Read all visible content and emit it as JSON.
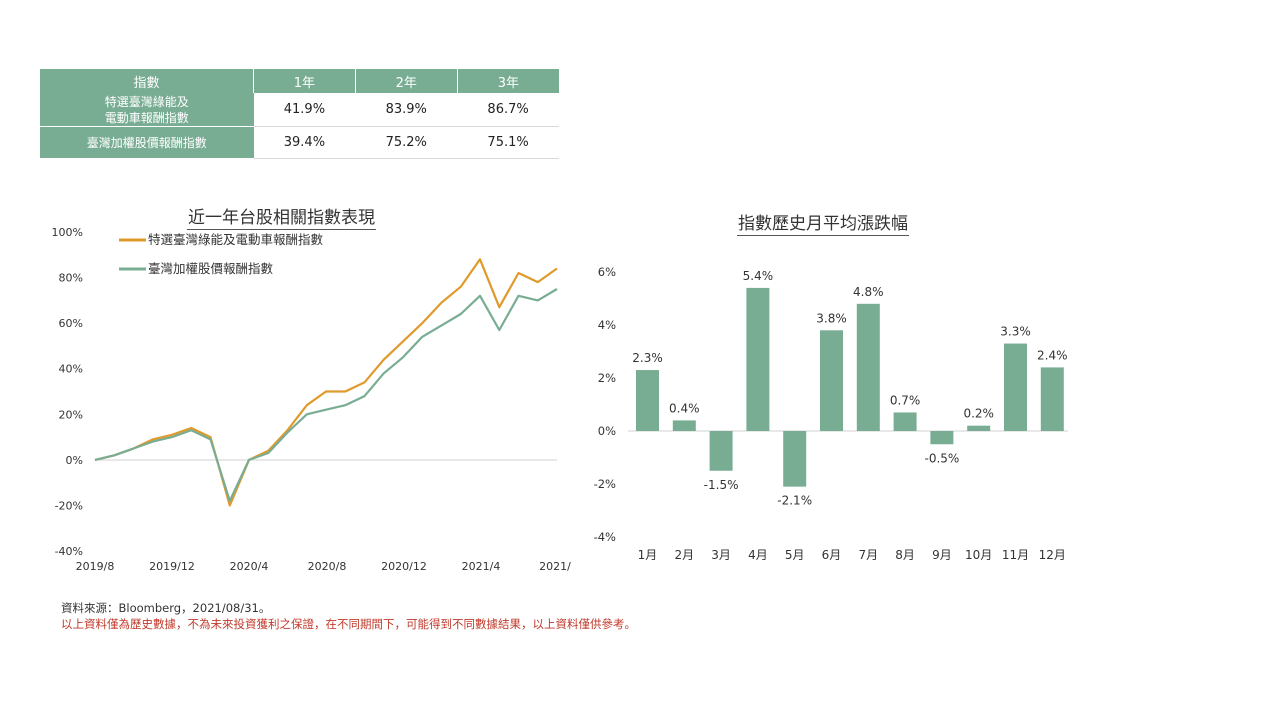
{
  "table": {
    "headers": [
      "指數",
      "1年",
      "2年",
      "3年"
    ],
    "rows": [
      {
        "name_line1": "特選臺灣綠能及",
        "name_line2": "電動車報酬指數",
        "values": [
          "41.9%",
          "83.9%",
          "86.7%"
        ]
      },
      {
        "name_line1": "臺灣加權股價報酬指數",
        "name_line2": "",
        "values": [
          "39.4%",
          "75.2%",
          "75.1%"
        ]
      }
    ]
  },
  "line_title": "近一年台股相關指數表現",
  "bar_title": "指數歷史月平均漲跌幅",
  "colors": {
    "series1": "#e09a2b",
    "series2": "#79ad93",
    "bar": "#79ad93",
    "header": "#79ad93",
    "disclaimer": "#c0392b"
  },
  "chart_data": [
    {
      "type": "line",
      "title": "近一年台股相關指數表現",
      "x_tick_labels": [
        "2019/8",
        "2019/12",
        "2020/4",
        "2020/8",
        "2020/12",
        "2021/4",
        "2021/"
      ],
      "y_tick_labels": [
        "100%",
        "80%",
        "60%",
        "40%",
        "20%",
        "0%",
        "-20%",
        "-40%"
      ],
      "ylim": [
        -40,
        100
      ],
      "x": [
        "2019-08",
        "2019-09",
        "2019-10",
        "2019-11",
        "2019-12",
        "2020-01",
        "2020-02",
        "2020-03",
        "2020-04",
        "2020-05",
        "2020-06",
        "2020-07",
        "2020-08",
        "2020-09",
        "2020-10",
        "2020-11",
        "2020-12",
        "2021-01",
        "2021-02",
        "2021-03",
        "2021-04",
        "2021-05",
        "2021-06",
        "2021-07",
        "2021-08"
      ],
      "series": [
        {
          "name": "特選臺灣綠能及電動車報酬指數",
          "values": [
            0,
            2,
            5,
            9,
            11,
            14,
            10,
            -20,
            0,
            4,
            13,
            24,
            30,
            30,
            34,
            44,
            52,
            60,
            69,
            76,
            88,
            67,
            82,
            78,
            84
          ]
        },
        {
          "name": "臺灣加權股價報酬指數",
          "values": [
            0,
            2,
            5,
            8,
            10,
            13,
            9,
            -18,
            0,
            3,
            12,
            20,
            22,
            24,
            28,
            38,
            45,
            54,
            59,
            64,
            72,
            57,
            72,
            70,
            75
          ]
        }
      ],
      "legend": "top-left",
      "grid": false
    },
    {
      "type": "bar",
      "title": "指數歷史月平均漲跌幅",
      "categories": [
        "1月",
        "2月",
        "3月",
        "4月",
        "5月",
        "6月",
        "7月",
        "8月",
        "9月",
        "10月",
        "11月",
        "12月"
      ],
      "values": [
        2.3,
        0.4,
        -1.5,
        5.4,
        -2.1,
        3.8,
        4.8,
        0.7,
        -0.5,
        0.2,
        3.3,
        2.4
      ],
      "value_labels": [
        "2.3%",
        "0.4%",
        "-1.5%",
        "5.4%",
        "-2.1%",
        "3.8%",
        "4.8%",
        "0.7%",
        "-0.5%",
        "0.2%",
        "3.3%",
        "2.4%"
      ],
      "y_tick_labels": [
        "6%",
        "4%",
        "2%",
        "0%",
        "-2%",
        "-4%"
      ],
      "ylim": [
        -4,
        6
      ]
    }
  ],
  "footer": {
    "source": "資料來源：Bloomberg，2021/08/31。",
    "disclaimer": "以上資料僅為歷史數據，不為未來投資獲利之保證，在不同期間下，可能得到不同數據結果，以上資料僅供參考。"
  }
}
